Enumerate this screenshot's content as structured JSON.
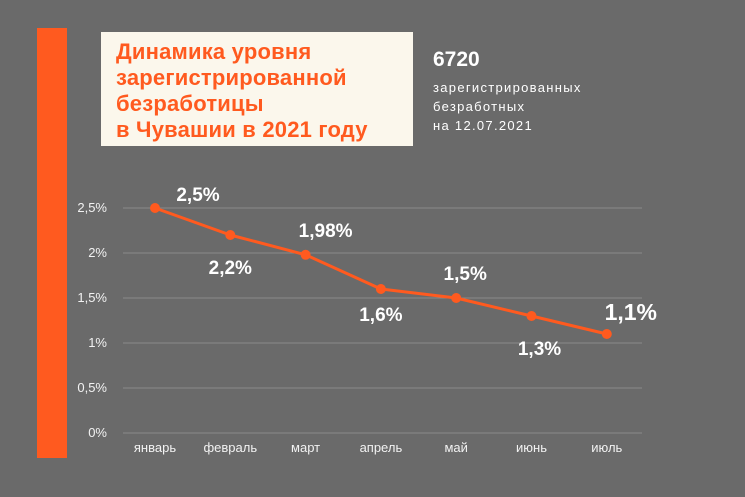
{
  "title_lines": [
    "Динамика  уровня",
    "зарегистрированной",
    "безработицы",
    "в Чувашии в 2021 году"
  ],
  "stat": {
    "number": "6720",
    "caption_lines": [
      "зарегистрированных",
      "безработных",
      "на  12.07.2021"
    ]
  },
  "colors": {
    "background": "#6a6a6a",
    "accent": "#ff5a1f",
    "title_box": "#fbf7ec",
    "grid": "#8a8a8a"
  },
  "chart_data": {
    "type": "line",
    "categories": [
      "январь",
      "февраль",
      "март",
      "апрель",
      "май",
      "июнь",
      "июль"
    ],
    "series": [
      {
        "values": [
          2.5,
          2.2,
          1.98,
          1.6,
          1.5,
          1.3,
          1.1
        ]
      }
    ],
    "data_labels": [
      "2,5%",
      "2,2%",
      "1,98%",
      "1,6%",
      "1,5%",
      "1,3%",
      "1,1%"
    ],
    "y_ticks": [
      0,
      0.5,
      1,
      1.5,
      2,
      2.5
    ],
    "y_tick_labels": [
      "0%",
      "0,5%",
      "1%",
      "1,5%",
      "2%",
      "2,5%"
    ],
    "ylim": [
      0,
      2.5
    ],
    "grid": true,
    "legend": "none",
    "line_color": "#ff5a1f"
  }
}
